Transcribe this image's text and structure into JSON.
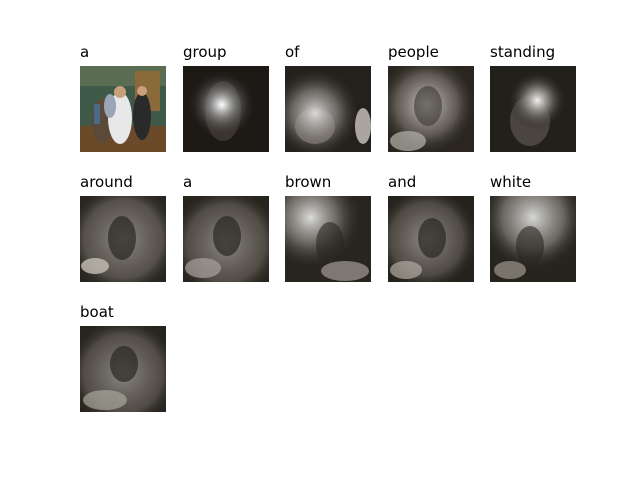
{
  "figure": {
    "caption_words": [
      {
        "word": "a",
        "kind": "original",
        "attn": null
      },
      {
        "word": "group",
        "kind": "attention",
        "attn": "center"
      },
      {
        "word": "of",
        "kind": "attention",
        "attn": "left-low"
      },
      {
        "word": "people",
        "kind": "attention",
        "attn": "center-wide"
      },
      {
        "word": "standing",
        "kind": "attention",
        "attn": "center-right"
      },
      {
        "word": "around",
        "kind": "attention",
        "attn": "diffuse"
      },
      {
        "word": "a",
        "kind": "attention",
        "attn": "diffuse-low"
      },
      {
        "word": "brown",
        "kind": "attention",
        "attn": "top-left"
      },
      {
        "word": "and",
        "kind": "attention",
        "attn": "diffuse-low"
      },
      {
        "word": "white",
        "kind": "attention",
        "attn": "top-right"
      },
      {
        "word": "boat",
        "kind": "attention",
        "attn": "diffuse-low"
      }
    ],
    "colors": {
      "background": "#ffffff",
      "label": "#000000",
      "wall_green": "#3f5a48",
      "floor_brown": "#6b4a2a",
      "shirt_white": "#e8e8e8"
    }
  }
}
